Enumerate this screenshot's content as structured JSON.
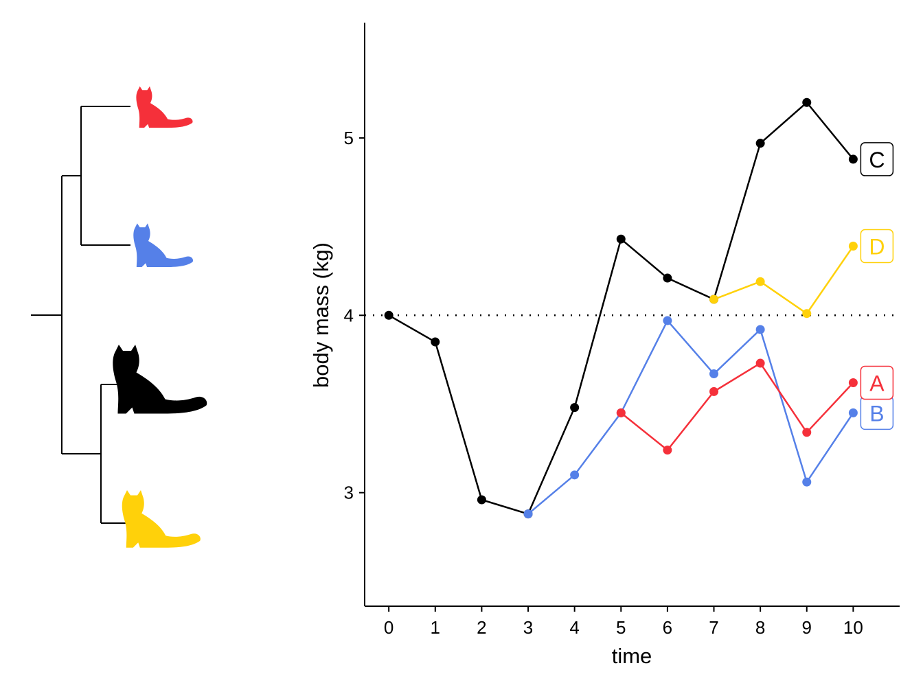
{
  "chart_data": {
    "type": "line",
    "title": "",
    "xlabel": "time",
    "ylabel": "body mass (kg)",
    "xlim": [
      -0.52,
      11.0
    ],
    "ylim": [
      2.36,
      5.65
    ],
    "x_ticks": [
      0,
      1,
      2,
      3,
      4,
      5,
      6,
      7,
      8,
      9,
      10
    ],
    "y_ticks": [
      3,
      4,
      5
    ],
    "grid": false,
    "reference_line": {
      "y": 4,
      "style": "dotted",
      "color": "#000000"
    },
    "series": [
      {
        "name": "C",
        "color": "#000000",
        "x": [
          0,
          1,
          2,
          3,
          4,
          5,
          6,
          7,
          8,
          9,
          10
        ],
        "y": [
          4.0,
          3.85,
          2.96,
          2.88,
          3.48,
          4.43,
          4.21,
          4.09,
          4.97,
          5.2,
          4.88
        ]
      },
      {
        "name": "D",
        "color": "#FFD10A",
        "x": [
          7,
          8,
          9,
          10
        ],
        "y": [
          4.09,
          4.19,
          4.01,
          4.39
        ]
      },
      {
        "name": "B",
        "color": "#5580E8",
        "x": [
          3,
          4,
          5,
          6,
          7,
          8,
          9,
          10
        ],
        "y": [
          2.88,
          3.1,
          3.45,
          3.97,
          3.67,
          3.92,
          3.06,
          3.45
        ]
      },
      {
        "name": "A",
        "color": "#F5303A",
        "x": [
          5,
          6,
          7,
          8,
          9,
          10
        ],
        "y": [
          3.45,
          3.24,
          3.57,
          3.73,
          3.34,
          3.62
        ]
      }
    ],
    "tree": {
      "tips": [
        {
          "name": "A",
          "color": "#F5303A",
          "icon": "cat-silhouette"
        },
        {
          "name": "B",
          "color": "#5580E8",
          "icon": "cat-silhouette"
        },
        {
          "name": "C",
          "color": "#000000",
          "icon": "cat-silhouette"
        },
        {
          "name": "D",
          "color": "#FFD10A",
          "icon": "cat-silhouette"
        }
      ],
      "topology": "((A,B),(C,D))"
    }
  }
}
